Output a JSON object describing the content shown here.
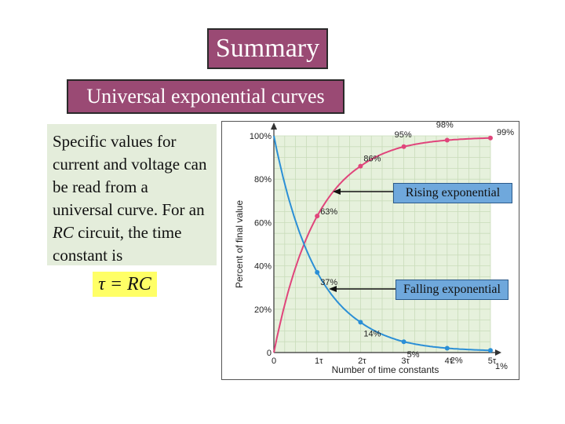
{
  "slide": {
    "title": "Summary",
    "subtitle": "Universal exponential curves",
    "description_parts": [
      "Specific values for current and voltage can be read from a universal curve. For an ",
      "RC",
      " circuit, the time constant is"
    ],
    "formula": "τ = RC"
  },
  "colors": {
    "title_bg": "#9a4a74",
    "desc_bg": "#e4eddb",
    "formula_bg": "#ffff66",
    "plot_bg": "#e6f1dc",
    "rising": "#e0457b",
    "falling": "#2b8fd6",
    "annotation_bg": "#6fa8dc"
  },
  "chart_data": {
    "type": "line",
    "xlabel": "Number of time constants",
    "ylabel": "Percent of final value",
    "x_ticks": [
      "0",
      "1τ",
      "2τ",
      "3τ",
      "4τ",
      "5τ"
    ],
    "y_ticks": [
      "0",
      "20%",
      "40%",
      "60%",
      "80%",
      "100%"
    ],
    "xlim": [
      0,
      5
    ],
    "ylim": [
      0,
      100
    ],
    "grid": true,
    "series": [
      {
        "name": "Rising exponential",
        "x": [
          1,
          2,
          3,
          4,
          5
        ],
        "y": [
          63,
          86,
          95,
          98,
          99
        ],
        "labels": [
          "63%",
          "86%",
          "95%",
          "98%",
          "99%"
        ]
      },
      {
        "name": "Falling exponential",
        "x": [
          1,
          2,
          3,
          4,
          5
        ],
        "y": [
          37,
          14,
          5,
          2,
          1
        ],
        "labels": [
          "37%",
          "14%",
          "5%",
          "2%",
          "1%"
        ]
      }
    ]
  }
}
